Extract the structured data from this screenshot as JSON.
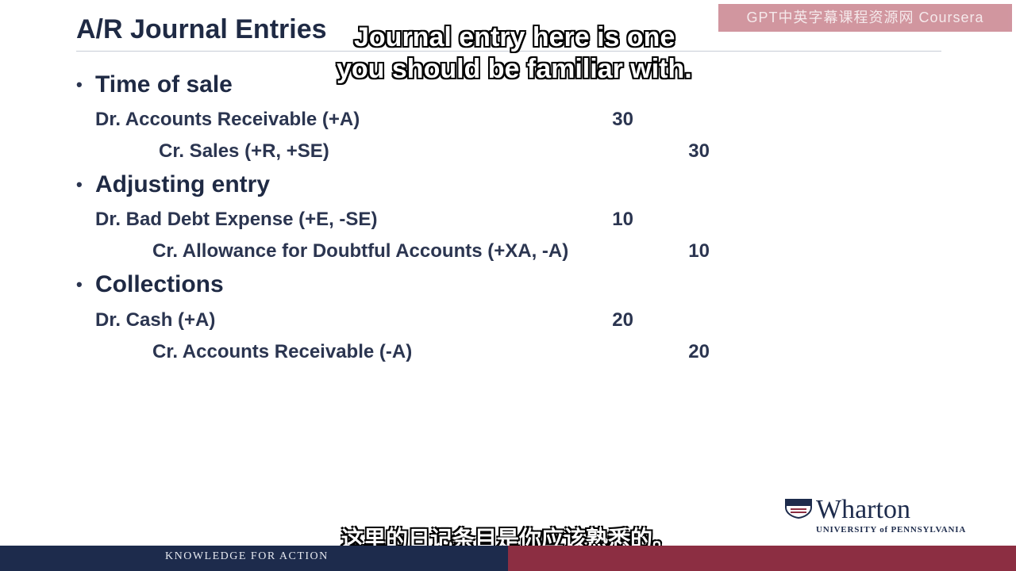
{
  "slide": {
    "title": "A/R Journal Entries",
    "sections": [
      {
        "heading": "Time of sale",
        "entries": [
          {
            "text": "Dr. Accounts Receivable (+A)",
            "debit": "30",
            "credit": ""
          },
          {
            "text": "Cr. Sales (+R, +SE)",
            "debit": "",
            "credit": "30"
          }
        ]
      },
      {
        "heading": "Adjusting entry",
        "entries": [
          {
            "text": "Dr. Bad Debt Expense (+E, -SE)",
            "debit": "10",
            "credit": ""
          },
          {
            "text": "Cr. Allowance for Doubtful Accounts (+XA, -A)",
            "debit": "",
            "credit": "10"
          }
        ]
      },
      {
        "heading": "Collections",
        "entries": [
          {
            "text": "Dr. Cash (+A)",
            "debit": "20",
            "credit": ""
          },
          {
            "text": "Cr. Accounts Receivable (-A)",
            "debit": "",
            "credit": "20"
          }
        ]
      }
    ]
  },
  "captions": {
    "english_line1": "Journal entry here is one",
    "english_line2": "you should be familiar with.",
    "chinese": "这里的日记条目是你应该熟悉的。"
  },
  "watermark": "GPT中英字幕课程资源网 Coursera",
  "footer": {
    "tagline": "KNOWLEDGE FOR ACTION"
  },
  "logo": {
    "name": "Wharton",
    "subtitle": "UNIVERSITY of PENNSYLVANIA",
    "icon": "penn-shield-icon"
  },
  "colors": {
    "navy": "#1d2b4c",
    "maroon": "#8c2e42",
    "text": "#2b3550"
  }
}
